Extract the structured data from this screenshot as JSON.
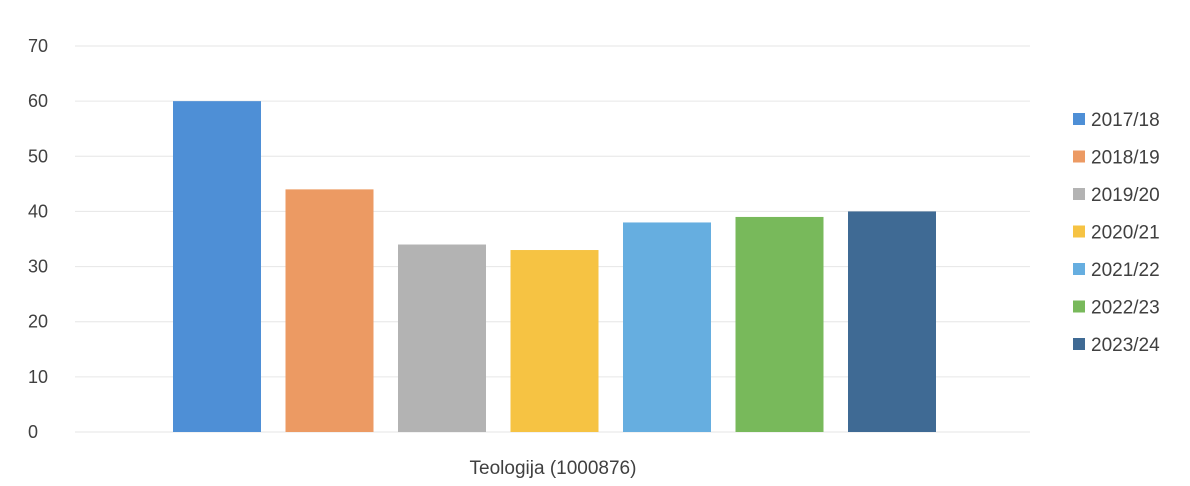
{
  "chart_data": {
    "type": "bar",
    "categories": [
      "Teologija (1000876)"
    ],
    "series": [
      {
        "name": "2017/18",
        "values": [
          60
        ],
        "color": "#4e8fd6"
      },
      {
        "name": "2018/19",
        "values": [
          44
        ],
        "color": "#ec9a63"
      },
      {
        "name": "2019/20",
        "values": [
          34
        ],
        "color": "#b3b3b3"
      },
      {
        "name": "2020/21",
        "values": [
          33
        ],
        "color": "#f6c343"
      },
      {
        "name": "2021/22",
        "values": [
          38
        ],
        "color": "#66aee0"
      },
      {
        "name": "2022/23",
        "values": [
          39
        ],
        "color": "#78b95b"
      },
      {
        "name": "2023/24",
        "values": [
          40
        ],
        "color": "#3f6a94"
      }
    ],
    "ylim": [
      0,
      70
    ],
    "yticks": [
      0,
      10,
      20,
      30,
      40,
      50,
      60,
      70
    ],
    "grid": true,
    "legend_position": "right"
  }
}
